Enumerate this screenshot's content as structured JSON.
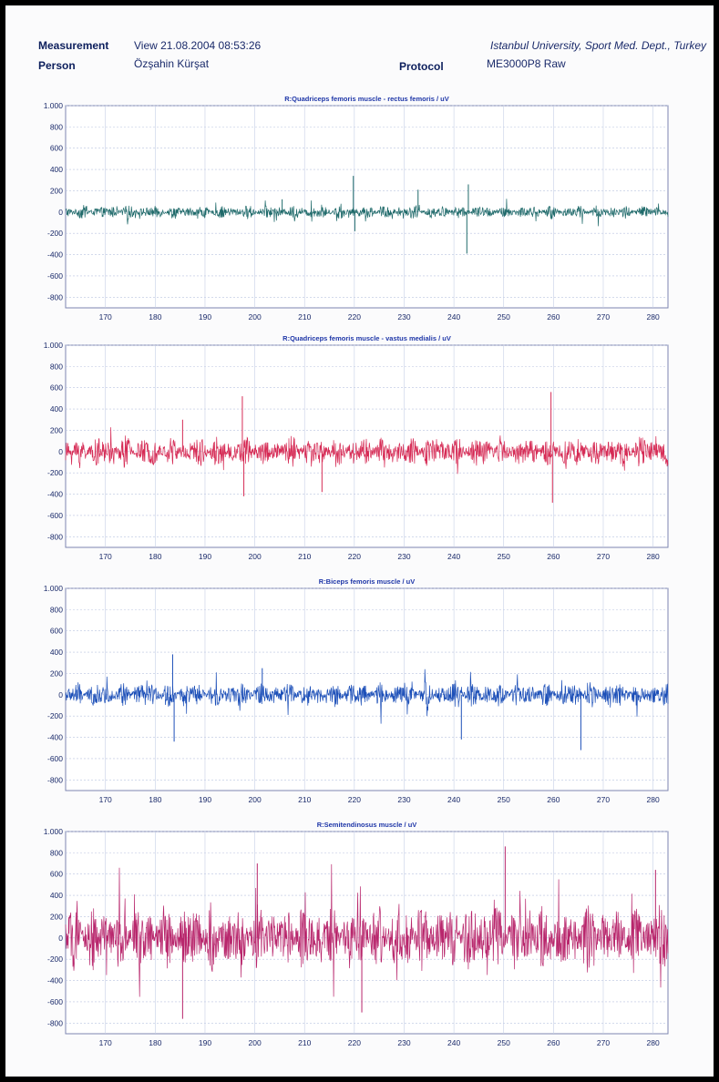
{
  "header": {
    "measurement_label": "Measurement",
    "measurement_value": "View 21.08.2004 08:53:26",
    "institution": "Istanbul University, Sport Med. Dept., Turkey",
    "person_label": "Person",
    "person_value": "Özşahin Kürşat",
    "protocol_label": "Protocol",
    "protocol_value": "ME3000P8 Raw"
  },
  "chart_data": [
    {
      "type": "line",
      "title": "R:Quadriceps femoris muscle - rectus femoris / uV",
      "color": "#1f6a6a",
      "amplitude": 60,
      "spikes": [
        [
          219.8,
          340
        ],
        [
          220.1,
          -180
        ],
        [
          232.8,
          210
        ],
        [
          242.6,
          -390
        ],
        [
          242.9,
          260
        ],
        [
          205.5,
          120
        ]
      ],
      "xlim": [
        162,
        283
      ],
      "x_ticks": [
        170,
        180,
        190,
        200,
        210,
        220,
        230,
        240,
        250,
        260,
        270,
        280
      ],
      "x_tick_labels": [
        "170",
        "180",
        "190",
        "200",
        "210",
        "220",
        "230",
        "240",
        "250",
        "260",
        "270",
        "280"
      ],
      "ylim": [
        -900,
        1000
      ],
      "y_ticks": [
        1000,
        800,
        600,
        400,
        200,
        0,
        -200,
        -400,
        -600,
        -800
      ],
      "y_tick_labels": [
        "1.000",
        "800",
        "600",
        "400",
        "200",
        "0",
        "-200",
        "-400",
        "-600",
        "-800"
      ],
      "grid": true
    },
    {
      "type": "line",
      "title": "R:Quadriceps femoris muscle - vastus medialis / uV",
      "color": "#d62b55",
      "amplitude": 140,
      "spikes": [
        [
          197.5,
          520
        ],
        [
          197.8,
          -420
        ],
        [
          259.5,
          560
        ],
        [
          259.8,
          -480
        ],
        [
          213.5,
          -380
        ],
        [
          185.5,
          300
        ]
      ],
      "xlim": [
        162,
        283
      ],
      "x_ticks": [
        170,
        180,
        190,
        200,
        210,
        220,
        230,
        240,
        250,
        260,
        270,
        280
      ],
      "x_tick_labels": [
        "170",
        "180",
        "190",
        "200",
        "210",
        "220",
        "230",
        "240",
        "250",
        "260",
        "270",
        "280"
      ],
      "ylim": [
        -900,
        1000
      ],
      "y_ticks": [
        1000,
        800,
        600,
        400,
        200,
        0,
        -200,
        -400,
        -600,
        -800
      ],
      "y_tick_labels": [
        "1.000",
        "800",
        "600",
        "400",
        "200",
        "0",
        "-200",
        "-400",
        "-600",
        "-800"
      ],
      "grid": true
    },
    {
      "type": "line",
      "title": "R:Biceps femoris muscle / uV",
      "color": "#1c4fb8",
      "amplitude": 110,
      "spikes": [
        [
          183.5,
          380
        ],
        [
          183.8,
          -440
        ],
        [
          265.5,
          -520
        ],
        [
          241.5,
          -420
        ],
        [
          201.5,
          250
        ]
      ],
      "xlim": [
        162,
        283
      ],
      "x_ticks": [
        170,
        180,
        190,
        200,
        210,
        220,
        230,
        240,
        250,
        260,
        270,
        280
      ],
      "x_tick_labels": [
        "170",
        "180",
        "190",
        "200",
        "210",
        "220",
        "230",
        "240",
        "250",
        "260",
        "270",
        "280"
      ],
      "ylim": [
        -900,
        1000
      ],
      "y_ticks": [
        1000,
        800,
        600,
        400,
        200,
        0,
        -200,
        -400,
        -600,
        -800
      ],
      "y_tick_labels": [
        "1.000",
        "800",
        "600",
        "400",
        "200",
        "0",
        "-200",
        "-400",
        "-600",
        "-800"
      ],
      "grid": true
    },
    {
      "type": "line",
      "title": "R:Semitendinosus muscle / uV",
      "color": "#b8266c",
      "amplitude": 300,
      "spikes": [
        [
          185.5,
          -760
        ],
        [
          250.3,
          860
        ],
        [
          221.5,
          -700
        ],
        [
          280.5,
          640
        ],
        [
          200.5,
          700
        ]
      ],
      "xlim": [
        162,
        283
      ],
      "x_ticks": [
        170,
        180,
        190,
        200,
        210,
        220,
        230,
        240,
        250,
        260,
        270,
        280
      ],
      "x_tick_labels": [
        "170",
        "180",
        "190",
        "200",
        "210",
        "220",
        "230",
        "240",
        "250",
        "260",
        "270",
        "280"
      ],
      "ylim": [
        -900,
        1000
      ],
      "y_ticks": [
        1000,
        800,
        600,
        400,
        200,
        0,
        -200,
        -400,
        -600,
        -800
      ],
      "y_tick_labels": [
        "1.000",
        "800",
        "600",
        "400",
        "200",
        "0",
        "-200",
        "-400",
        "-600",
        "-800"
      ],
      "grid": true
    }
  ]
}
